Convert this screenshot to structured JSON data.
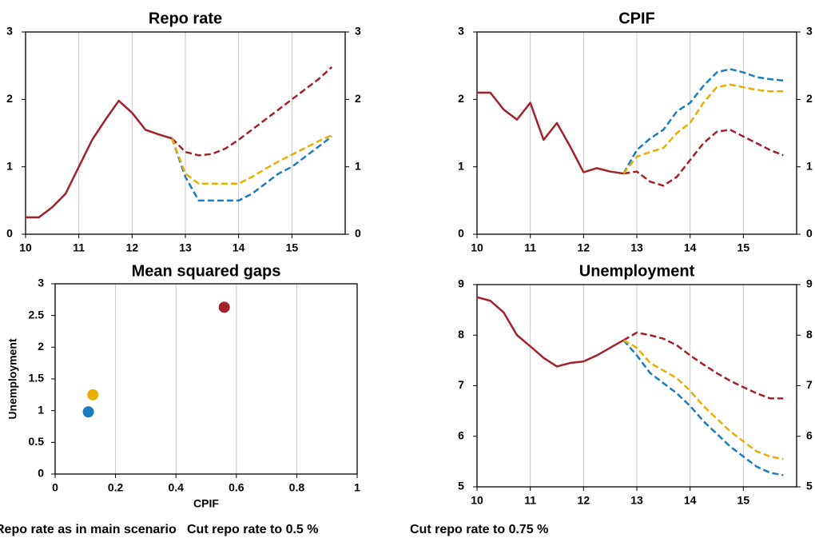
{
  "chart_data": [
    {
      "type": "line",
      "title": "Repo rate",
      "xlim": [
        10,
        16
      ],
      "xticks": [
        10,
        11,
        12,
        13,
        14,
        15
      ],
      "ylim": [
        0,
        3
      ],
      "yticks": [
        0,
        1,
        2,
        3
      ],
      "grid": true,
      "mirror_y_axis": true,
      "x": [
        10,
        10.25,
        10.5,
        10.75,
        11,
        11.25,
        11.5,
        11.75,
        12,
        12.25,
        12.5,
        12.75,
        13,
        13.25,
        13.5,
        13.75,
        14,
        14.25,
        14.5,
        14.75,
        15,
        15.25,
        15.5,
        15.75
      ],
      "series": [
        {
          "name": "Repo rate as in main scenario",
          "color": "#a3222a",
          "dashed": true,
          "values": [
            null,
            null,
            null,
            null,
            null,
            null,
            null,
            null,
            null,
            null,
            null,
            1.42,
            1.22,
            1.17,
            1.19,
            1.27,
            1.4,
            1.55,
            1.7,
            1.85,
            2.0,
            2.15,
            2.3,
            2.48
          ]
        },
        {
          "name": "Cut repo rate to 0.5 %",
          "color": "#1b7cc0",
          "dashed": true,
          "values": [
            null,
            null,
            null,
            null,
            null,
            null,
            null,
            null,
            null,
            null,
            null,
            1.42,
            0.85,
            0.5,
            0.5,
            0.5,
            0.5,
            0.6,
            0.75,
            0.9,
            1.0,
            1.15,
            1.3,
            1.45
          ]
        },
        {
          "name": "Cut repo rate to 0.75 %",
          "color": "#e8ae00",
          "dashed": true,
          "values": [
            null,
            null,
            null,
            null,
            null,
            null,
            null,
            null,
            null,
            null,
            null,
            1.42,
            0.9,
            0.75,
            0.75,
            0.75,
            0.75,
            0.85,
            0.97,
            1.08,
            1.18,
            1.28,
            1.38,
            1.47
          ]
        },
        {
          "color": "#a3222a",
          "values": [
            0.25,
            0.25,
            0.4,
            0.6,
            1.0,
            1.4,
            1.7,
            1.98,
            1.8,
            1.55,
            1.48,
            1.42,
            null,
            null,
            null,
            null,
            null,
            null,
            null,
            null,
            null,
            null,
            null,
            null
          ]
        }
      ]
    },
    {
      "type": "line",
      "title": "CPIF",
      "xlim": [
        10,
        16
      ],
      "xticks": [
        10,
        11,
        12,
        13,
        14,
        15
      ],
      "ylim": [
        0,
        3
      ],
      "yticks": [
        0,
        1,
        2,
        3
      ],
      "grid": true,
      "mirror_y_axis": true,
      "x": [
        10,
        10.25,
        10.5,
        10.75,
        11,
        11.25,
        11.5,
        11.75,
        12,
        12.25,
        12.5,
        12.75,
        13,
        13.25,
        13.5,
        13.75,
        14,
        14.25,
        14.5,
        14.75,
        15,
        15.25,
        15.5,
        15.75
      ],
      "series": [
        {
          "name": "Repo rate as in main scenario",
          "color": "#a3222a",
          "dashed": true,
          "values": [
            null,
            null,
            null,
            null,
            null,
            null,
            null,
            null,
            null,
            null,
            null,
            0.9,
            0.93,
            0.78,
            0.72,
            0.85,
            1.1,
            1.35,
            1.52,
            1.55,
            1.45,
            1.35,
            1.25,
            1.17
          ]
        },
        {
          "name": "Cut repo rate to 0.5 %",
          "color": "#1b7cc0",
          "dashed": true,
          "values": [
            null,
            null,
            null,
            null,
            null,
            null,
            null,
            null,
            null,
            null,
            null,
            0.9,
            1.25,
            1.42,
            1.55,
            1.82,
            1.95,
            2.2,
            2.4,
            2.45,
            2.4,
            2.33,
            2.3,
            2.28
          ]
        },
        {
          "name": "Cut repo rate to 0.75 %",
          "color": "#e8ae00",
          "dashed": true,
          "values": [
            null,
            null,
            null,
            null,
            null,
            null,
            null,
            null,
            null,
            null,
            null,
            0.9,
            1.15,
            1.22,
            1.28,
            1.5,
            1.65,
            1.95,
            2.18,
            2.22,
            2.18,
            2.14,
            2.12,
            2.12
          ]
        },
        {
          "color": "#a3222a",
          "values": [
            2.1,
            2.1,
            1.85,
            1.7,
            1.95,
            1.4,
            1.65,
            1.3,
            0.92,
            0.98,
            0.93,
            0.9,
            null,
            null,
            null,
            null,
            null,
            null,
            null,
            null,
            null,
            null,
            null,
            null
          ]
        }
      ]
    },
    {
      "type": "scatter",
      "title": "Mean squared gaps",
      "xlabel": "CPIF",
      "ylabel": "Unemployment",
      "xlim": [
        0,
        1
      ],
      "xticks": [
        0,
        0.2,
        0.4,
        0.6,
        0.8,
        1
      ],
      "ylim": [
        0,
        3
      ],
      "yticks": [
        0,
        0.5,
        1,
        1.5,
        2,
        2.5,
        3
      ],
      "grid": true,
      "series": [
        {
          "name": "Repo rate as in main scenario",
          "color": "#a3222a",
          "x": [
            0.56
          ],
          "values": [
            2.63
          ]
        },
        {
          "name": "Cut repo rate to 0.5 %",
          "color": "#1b7cc0",
          "x": [
            0.11
          ],
          "values": [
            0.98
          ]
        },
        {
          "name": "Cut repo rate to 0.75 %",
          "color": "#e8ae00",
          "x": [
            0.125
          ],
          "values": [
            1.25
          ]
        }
      ]
    },
    {
      "type": "line",
      "title": "Unemployment",
      "xlim": [
        10,
        16
      ],
      "xticks": [
        10,
        11,
        12,
        13,
        14,
        15
      ],
      "ylim": [
        5,
        9
      ],
      "yticks": [
        5,
        6,
        7,
        8,
        9
      ],
      "grid": true,
      "mirror_y_axis": true,
      "x": [
        10,
        10.25,
        10.5,
        10.75,
        11,
        11.25,
        11.5,
        11.75,
        12,
        12.25,
        12.5,
        12.75,
        13,
        13.25,
        13.5,
        13.75,
        14,
        14.25,
        14.5,
        14.75,
        15,
        15.25,
        15.5,
        15.75
      ],
      "series": [
        {
          "name": "Repo rate as in main scenario",
          "color": "#a3222a",
          "dashed": true,
          "values": [
            null,
            null,
            null,
            null,
            null,
            null,
            null,
            null,
            null,
            null,
            null,
            7.9,
            8.05,
            8.0,
            7.93,
            7.8,
            7.6,
            7.42,
            7.25,
            7.1,
            6.97,
            6.85,
            6.75,
            6.75
          ]
        },
        {
          "name": "Cut repo rate to 0.5 %",
          "color": "#1b7cc0",
          "dashed": true,
          "values": [
            null,
            null,
            null,
            null,
            null,
            null,
            null,
            null,
            null,
            null,
            null,
            7.9,
            7.6,
            7.25,
            7.05,
            6.85,
            6.6,
            6.3,
            6.05,
            5.8,
            5.6,
            5.4,
            5.28,
            5.23
          ]
        },
        {
          "name": "Cut repo rate to 0.75 %",
          "color": "#e8ae00",
          "dashed": true,
          "values": [
            null,
            null,
            null,
            null,
            null,
            null,
            null,
            null,
            null,
            null,
            null,
            7.9,
            7.75,
            7.45,
            7.3,
            7.15,
            6.9,
            6.6,
            6.35,
            6.1,
            5.9,
            5.7,
            5.6,
            5.55
          ]
        },
        {
          "color": "#a3222a",
          "values": [
            8.75,
            8.68,
            8.45,
            8.0,
            7.78,
            7.55,
            7.38,
            7.45,
            7.48,
            7.6,
            7.75,
            7.9,
            null,
            null,
            null,
            null,
            null,
            null,
            null,
            null,
            null,
            null,
            null,
            null
          ]
        }
      ]
    }
  ]
}
